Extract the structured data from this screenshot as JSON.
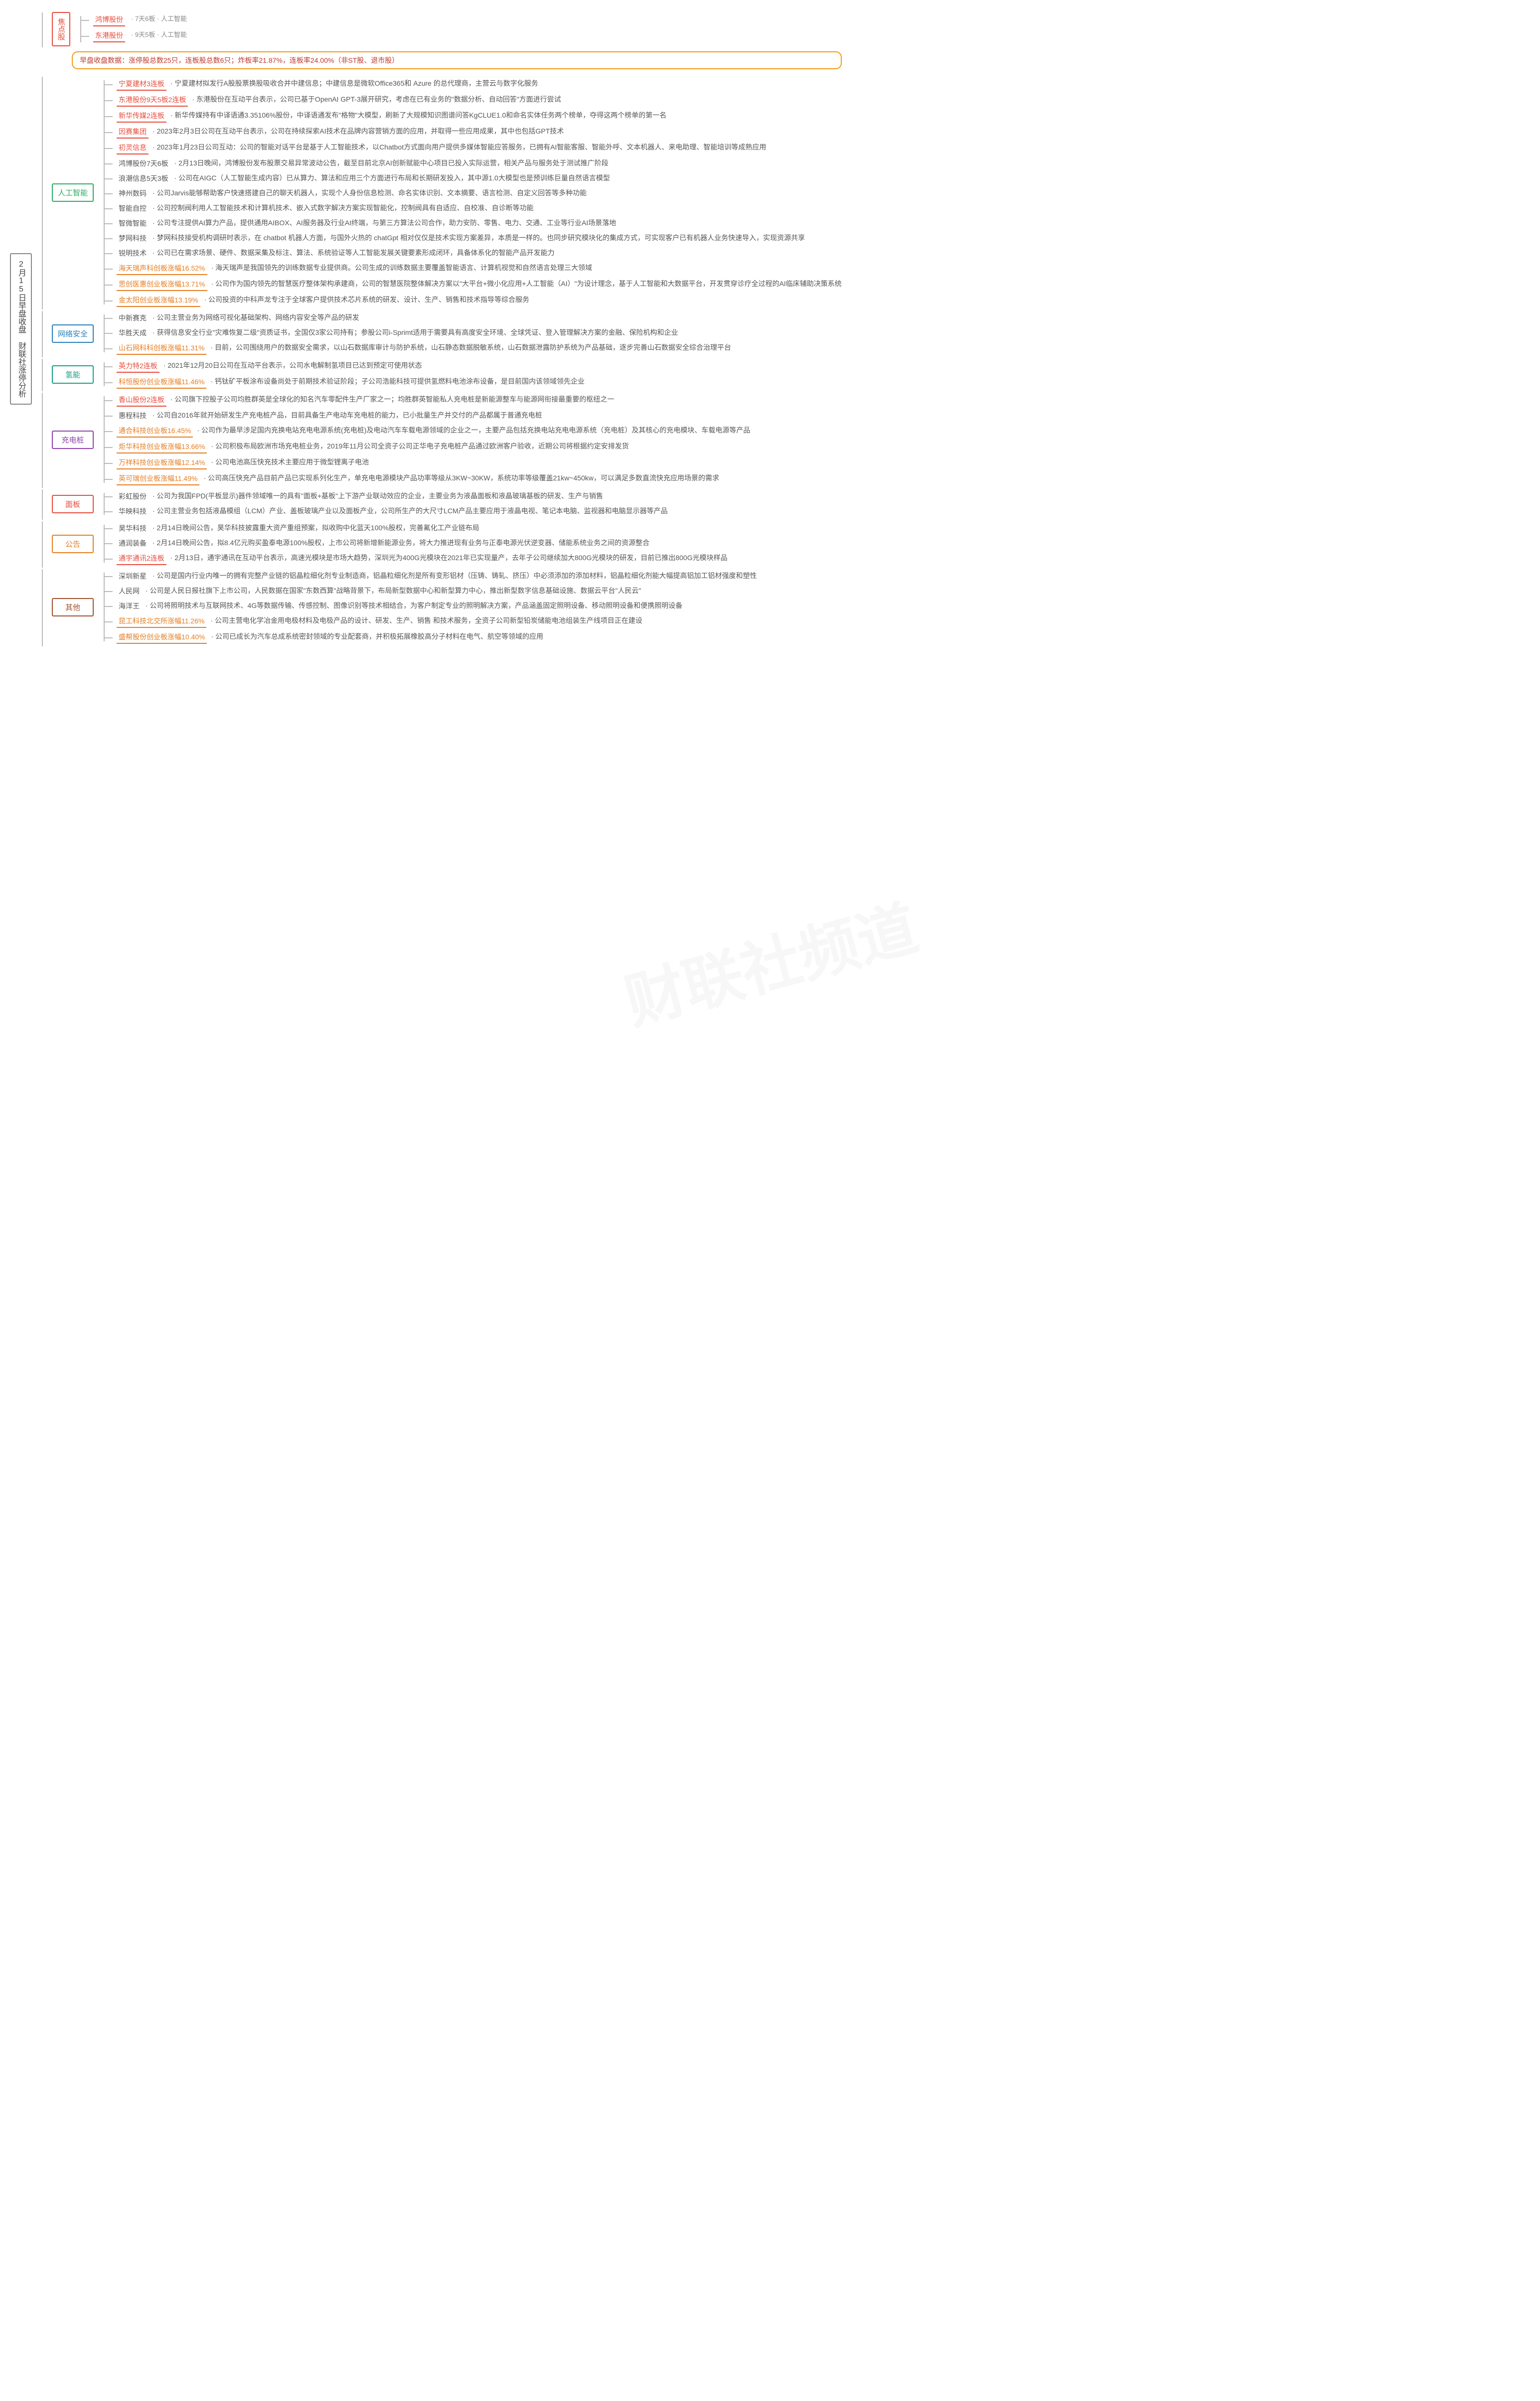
{
  "watermark": "财联社频道",
  "root_title": "2月15日早盘收盘 财联社涨停分析",
  "summary": "早盘收盘数据：涨停股总数25只，连板股总数6只；炸板率21.87%，连板率24.00%（非ST股、退市股）",
  "focus": {
    "label": "焦点股",
    "items": [
      {
        "stock": "鸿博股份",
        "tag": "· 7天6板 · 人工智能"
      },
      {
        "stock": "东港股份",
        "tag": "· 9天5板 · 人工智能"
      }
    ]
  },
  "sections": [
    {
      "label": "人工智能",
      "color": "green",
      "items": [
        {
          "stock": "宁夏建材3连板",
          "cls": "hot",
          "desc": "宁夏建材拟发行A股股票换股吸收合并中建信息；中建信息是微软Office365和 Azure 的总代理商，主营云与数字化服务"
        },
        {
          "stock": "东港股份9天5板2连板",
          "cls": "hot",
          "desc": "东港股份在互动平台表示，公司已基于OpenAI GPT-3展开研究，考虑在已有业务的\"数据分析、自动回答\"方面进行尝试"
        },
        {
          "stock": "新华传媒2连板",
          "cls": "hot",
          "desc": "新华传媒持有中译语通3.35106%股份，中译语通发布\"格物\"大模型，刷新了大规模知识图谱问答KgCLUE1.0和命名实体任务两个榜单，夺得这两个榜单的第一名"
        },
        {
          "stock": "因赛集团",
          "cls": "hot",
          "desc": "2023年2月3日公司在互动平台表示，公司在持续探索AI技术在品牌内容营销方面的应用，并取得一些应用成果，其中也包括GPT技术"
        },
        {
          "stock": "初灵信息",
          "cls": "hot",
          "desc": "2023年1月23日公司互动：公司的智能对话平台是基于人工智能技术，以Chatbot方式面向用户提供多媒体智能应答服务，已拥有AI智能客服、智能外呼、文本机器人、来电助理、智能培训等成熟应用"
        },
        {
          "stock": "鸿博股份7天6板",
          "cls": "plain",
          "desc": "2月13日晚间，鸿博股份发布股票交易异常波动公告，截至目前北京AI创新赋能中心项目已投入实际运营，相关产品与服务处于测试推广阶段"
        },
        {
          "stock": "浪潮信息5天3板",
          "cls": "plain",
          "desc": "公司在AIGC（人工智能生成内容）已从算力、算法和应用三个方面进行布局和长期研发投入，其中源1.0大模型也是预训练巨量自然语言模型"
        },
        {
          "stock": "神州数码",
          "cls": "plain",
          "desc": "公司Jarvis能够帮助客户快速搭建自己的聊天机器人，实现个人身份信息检测、命名实体识别、文本摘要、语言检测、自定义回答等多种功能"
        },
        {
          "stock": "智能自控",
          "cls": "plain",
          "desc": "公司控制阀利用人工智能技术和计算机技术、嵌入式数字解决方案实现智能化，控制阀具有自适应、自校准、自诊断等功能"
        },
        {
          "stock": "智微智能",
          "cls": "plain",
          "desc": "公司专注提供AI算力产品，提供通用AIBOX、AI服务器及行业AI终端，与第三方算法公司合作，助力安防、零售、电力、交通、工业等行业AI场景落地"
        },
        {
          "stock": "梦网科技",
          "cls": "plain",
          "desc": "梦网科技接受机构调研时表示，在 chatbot 机器人方面，与国外火热的 chatGpt 相对仅仅是技术实现方案差异，本质是一样的。也同步研究模块化的集成方式，可实现客户已有机器人业务快速导入，实现资源共享"
        },
        {
          "stock": "锐明技术",
          "cls": "plain",
          "desc": "公司已在需求场景、硬件、数据采集及标注、算法、系统验证等人工智能发展关键要素形成闭环，具备体系化的智能产品开发能力"
        },
        {
          "stock": "海天瑞声科创板涨幅16.52%",
          "cls": "orange",
          "desc": "海天瑞声是我国领先的训练数据专业提供商。公司生成的训练数据主要覆盖智能语言、计算机视觉和自然语言处理三大领域"
        },
        {
          "stock": "思创医惠创业板涨幅13.71%",
          "cls": "orange",
          "desc": "公司作为国内领先的智慧医疗整体架构承建商，公司的智慧医院整体解决方案以\"大平台+微小化应用+人工智能（AI）\"为设计理念，基于人工智能和大数据平台，开发贯穿诊疗全过程的AI临床辅助决策系统"
        },
        {
          "stock": "金太阳创业板涨幅13.19%",
          "cls": "orange",
          "desc": "公司投资的中科声龙专注于全球客户提供技术芯片系统的研发、设计、生产、销售和技术指导等综合服务"
        }
      ]
    },
    {
      "label": "网络安全",
      "color": "blue",
      "items": [
        {
          "stock": "中新赛克",
          "cls": "plain",
          "desc": "公司主营业务为网络可视化基础架构、网络内容安全等产品的研发"
        },
        {
          "stock": "华胜天成",
          "cls": "plain",
          "desc": "获得信息安全行业\"灾难恢复二级\"资质证书，全国仅3家公司持有；参股公司i-Sprimt适用于需要具有高度安全环境、全球凭证、登入管理解决方案的金融、保险机构和企业"
        },
        {
          "stock": "山石网科科创板涨幅11.31%",
          "cls": "orange",
          "desc": "目前，公司围绕用户的数据安全需求，以山石数据库审计与防护系统，山石静态数据脱敏系统，山石数据泄露防护系统为产品基础，逐步完善山石数据安全综合治理平台"
        }
      ]
    },
    {
      "label": "氢能",
      "color": "teal",
      "items": [
        {
          "stock": "英力特2连板",
          "cls": "hot",
          "desc": "2021年12月20日公司在互动平台表示，公司水电解制氢项目已达到预定可使用状态"
        },
        {
          "stock": "科恒股份创业板涨幅11.46%",
          "cls": "orange",
          "desc": "钙钛矿平板涂布设备尚处于前期技术验证阶段；子公司浩能科技可提供氢燃料电池涂布设备，是目前国内该领域领先企业"
        }
      ]
    },
    {
      "label": "充电桩",
      "color": "purple",
      "items": [
        {
          "stock": "香山股份2连板",
          "cls": "hot",
          "desc": "公司旗下控股子公司均胜群英是全球化的知名汽车零配件生产厂家之一；均胜群英智能私人充电桩是新能源整车与能源网衔接最重要的枢纽之一"
        },
        {
          "stock": "惠程科技",
          "cls": "plain",
          "desc": "公司自2016年就开始研发生产充电桩产品，目前具备生产电动车充电桩的能力，已小批量生产并交付的产品都属于普通充电桩"
        },
        {
          "stock": "通合科技创业板16.45%",
          "cls": "orange",
          "desc": "公司作为最早涉足国内充换电站充电电源系统(充电桩)及电动汽车车载电源领域的企业之一，主要产品包括充换电站充电电源系统（充电桩）及其核心的充电模块、车载电源等产品"
        },
        {
          "stock": "炬华科技创业板涨幅13.66%",
          "cls": "orange",
          "desc": "公司积极布局欧洲市场充电桩业务，2019年11月公司全资子公司正华电子充电桩产品通过欧洲客户验收，近期公司将根据约定安排发货"
        },
        {
          "stock": "万祥科技创业板涨幅12.14%",
          "cls": "orange",
          "desc": "公司电池高压快充技术主要应用于微型锂离子电池"
        },
        {
          "stock": "英可瑞创业板涨幅11.49%",
          "cls": "orange",
          "desc": "公司高压快充产品目前产品已实现系列化生产，单充电电源模块产品功率等级从3KW~30KW，系统功率等级覆盖21kw~450kw，可以满足多数直流快充应用场景的需求"
        }
      ]
    },
    {
      "label": "面板",
      "color": "red",
      "items": [
        {
          "stock": "彩虹股份",
          "cls": "plain",
          "desc": "公司为我国FPD(平板显示)器件领域唯一的具有\"面板+基板\"上下游产业联动效应的企业，主要业务为液晶面板和液晶玻璃基板的研发、生产与销售"
        },
        {
          "stock": "华映科技",
          "cls": "plain",
          "desc": "公司主营业务包括液晶模组（LCM）产业、盖板玻璃产业以及面板产业，公司所生产的大尺寸LCM产品主要应用于液晶电视、笔记本电脑、监视器和电脑显示器等产品"
        }
      ]
    },
    {
      "label": "公告",
      "color": "orange",
      "items": [
        {
          "stock": "昊华科技",
          "cls": "plain",
          "desc": "2月14日晚间公告，昊华科技披露重大资产重组预案，拟收购中化蓝天100%股权，完善氟化工产业链布局"
        },
        {
          "stock": "通润装备",
          "cls": "plain",
          "desc": "2月14日晚间公告，拟8.4亿元购买盈泰电源100%股权，上市公司将新增新能源业务，将大力推进现有业务与正泰电源光伏逆变器、储能系统业务之间的资源整合"
        },
        {
          "stock": "通宇通讯2连板",
          "cls": "hot",
          "desc": "2月13日，通宇通讯在互动平台表示，高速光模块是市场大趋势，深圳光为400G光模块在2021年已实现量产，去年子公司继续加大800G光模块的研发，目前已推出800G光模块样品"
        }
      ]
    },
    {
      "label": "其他",
      "color": "brown",
      "items": [
        {
          "stock": "深圳新星",
          "cls": "plain",
          "desc": "公司是国内行业内唯一的拥有完整产业链的铝晶粒细化剂专业制造商，铝晶粒细化剂是所有变形铝材（压铸、铸轧、挤压）中必须添加的添加材料，铝晶粒细化剂能大幅提高铝加工铝材强度和塑性"
        },
        {
          "stock": "人民网",
          "cls": "plain",
          "desc": "公司是人民日报社旗下上市公司，人民数据在国家\"东数西算\"战略背景下，布局新型数据中心和新型算力中心，推出新型数字信息基础设施、数据云平台\"人民云\""
        },
        {
          "stock": "海洋王",
          "cls": "plain",
          "desc": "公司将照明技术与互联网技术、4G等数据传输、传感控制、图像识别等技术相结合，为客户制定专业的照明解决方案，产品涵盖固定照明设备、移动照明设备和便携照明设备"
        },
        {
          "stock": "昆工科技北交所涨幅11.26%",
          "cls": "orange",
          "desc": "公司主营电化学冶金用电极材料及电极产品的设计、研发、生产、销售 和技术服务，全资子公司新型铅炭储能电池组装生产线项目正在建设"
        },
        {
          "stock": "盛帮股份创业板涨幅10.40%",
          "cls": "orange",
          "desc": "公司已成长为汽车总成系统密封领域的专业配套商，并积极拓展橡胶高分子材料在电气、航空等领域的应用"
        }
      ]
    }
  ]
}
